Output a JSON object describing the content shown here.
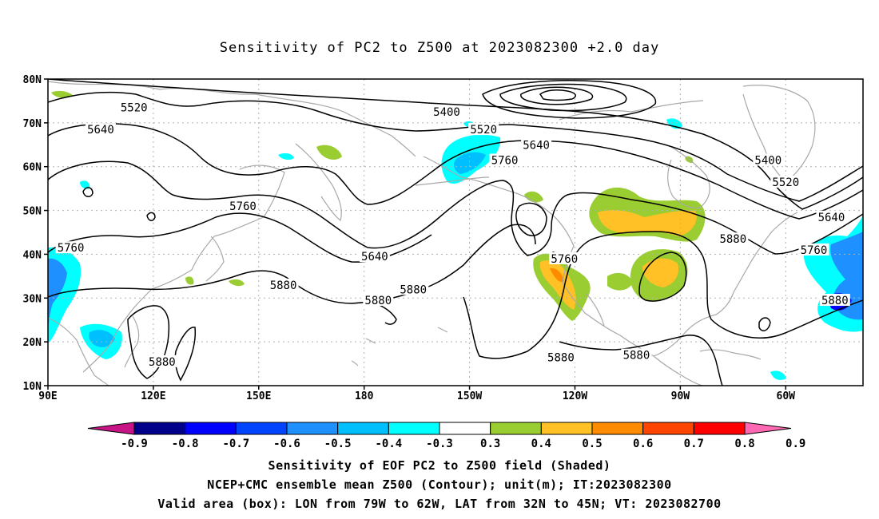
{
  "title": "Sensitivity of PC2 to Z500 at 2023082300 +2.0 day",
  "map": {
    "lat_labels": [
      "80N",
      "70N",
      "60N",
      "50N",
      "40N",
      "30N",
      "20N",
      "10N"
    ],
    "lon_labels": [
      "90E",
      "120E",
      "150E",
      "180",
      "150W",
      "120W",
      "90W",
      "60W"
    ],
    "lon_range": [
      90,
      322
    ],
    "lat_range": [
      10,
      80
    ],
    "grid": true,
    "contour_labels": [
      {
        "text": "5520",
        "lon": 114.5,
        "lat": 73.5
      },
      {
        "text": "5400",
        "lon": 203.5,
        "lat": 72.5
      },
      {
        "text": "5640",
        "lon": 105,
        "lat": 68.5
      },
      {
        "text": "5520",
        "lon": 214,
        "lat": 68.5
      },
      {
        "text": "5640",
        "lon": 229,
        "lat": 65
      },
      {
        "text": "5760",
        "lon": 220,
        "lat": 61.5
      },
      {
        "text": "5400",
        "lon": 295,
        "lat": 61.5
      },
      {
        "text": "5520",
        "lon": 300,
        "lat": 56.5
      },
      {
        "text": "5760",
        "lon": 145.5,
        "lat": 51
      },
      {
        "text": "5640",
        "lon": 313,
        "lat": 48.5
      },
      {
        "text": "5880",
        "lon": 285,
        "lat": 43.5
      },
      {
        "text": "5760",
        "lon": 96.5,
        "lat": 41.5
      },
      {
        "text": "5760",
        "lon": 308,
        "lat": 41
      },
      {
        "text": "5640",
        "lon": 183,
        "lat": 39.5
      },
      {
        "text": "5760",
        "lon": 237,
        "lat": 39
      },
      {
        "text": "5880",
        "lon": 157,
        "lat": 33
      },
      {
        "text": "5880",
        "lon": 194,
        "lat": 32
      },
      {
        "text": "5880",
        "lon": 184,
        "lat": 29.5
      },
      {
        "text": "5880",
        "lon": 314,
        "lat": 29.5
      },
      {
        "text": "5880",
        "lon": 236,
        "lat": 16.5
      },
      {
        "text": "5880",
        "lon": 257.5,
        "lat": 17
      },
      {
        "text": "5880",
        "lon": 122.5,
        "lat": 15.5
      }
    ],
    "valid_box": {
      "lon_w": 281,
      "lon_e": 298,
      "lat_s": 32,
      "lat_n": 45
    }
  },
  "colorbar": {
    "labels": [
      "-0.9",
      "-0.8",
      "-0.7",
      "-0.6",
      "-0.5",
      "-0.4",
      "-0.3",
      "0.3",
      "0.4",
      "0.5",
      "0.6",
      "0.7",
      "0.8",
      "0.9"
    ],
    "colors": [
      "#c71585",
      "#00008b",
      "#0000ff",
      "#0044ff",
      "#1e90ff",
      "#00bfff",
      "#00ffff",
      "#ffffff",
      "#9acd32",
      "#ffc125",
      "#ff8c00",
      "#ff4500",
      "#ff0000",
      "#ff69b4"
    ]
  },
  "captions": [
    "Sensitivity of EOF PC2 to Z500 field (Shaded)",
    "NCEP+CMC ensemble mean Z500 (Contour); unit(m); IT:2023082300",
    "Valid area (box): LON from 79W to 62W, LAT from 32N to 45N; VT: 2023082700"
  ]
}
